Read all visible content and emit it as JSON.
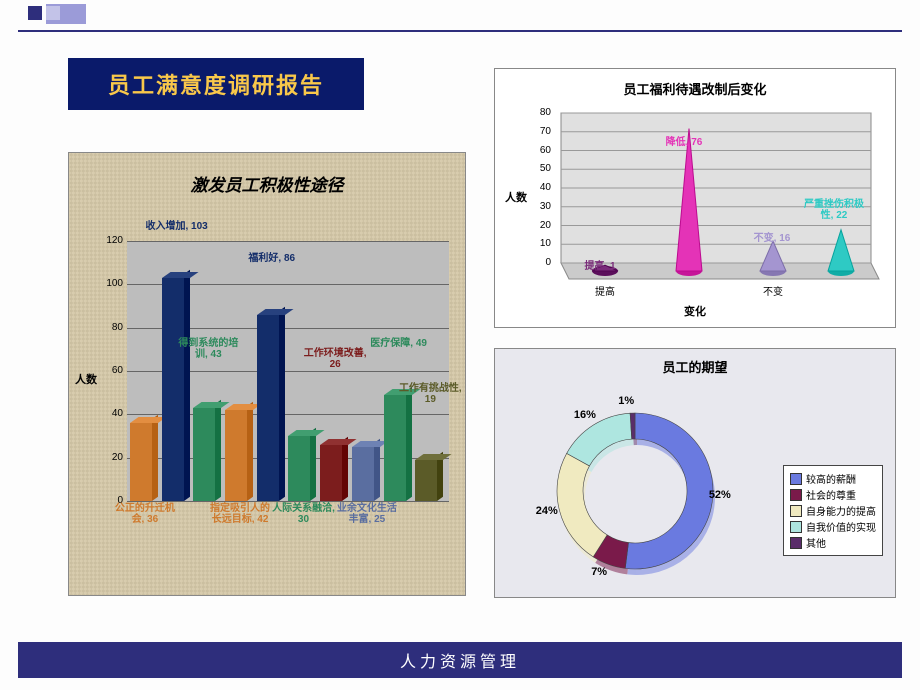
{
  "page": {
    "title_box": "员工满意度调研报告",
    "bottom_bar": "人力资源管理"
  },
  "bar_chart": {
    "title": "激发员工积极性途径",
    "ylabel": "人数",
    "type": "bar",
    "ylim": [
      0,
      120
    ],
    "ytick_step": 20,
    "grid_color": "#666666",
    "plot_bg": "#bdbdbd",
    "texture_bg_a": "#c8bb98",
    "texture_bg_b": "#d7c9a8",
    "bars": [
      {
        "label": "公正的升迁机会",
        "value": 36,
        "color": "#cf7a2d",
        "label_color": "#cf7a2d"
      },
      {
        "label": "收入增加",
        "value": 103,
        "color": "#132d6a",
        "label_color": "#132d6a"
      },
      {
        "label": "得到系统的培训",
        "value": 43,
        "color": "#2d8a5c",
        "label_color": "#2d8a5c"
      },
      {
        "label": "指定吸引人的长远目标",
        "value": 42,
        "color": "#cf7a2d",
        "label_color": "#cf7a2d"
      },
      {
        "label": "福利好",
        "value": 86,
        "color": "#132d6a",
        "label_color": "#132d6a"
      },
      {
        "label": "人际关系融洽",
        "value": 30,
        "color": "#2d8a5c",
        "label_color": "#2d8a5c"
      },
      {
        "label": "工作环境改善",
        "value": 26,
        "color": "#7c1d1d",
        "label_color": "#7c1d1d"
      },
      {
        "label": "业余文化生活丰富",
        "value": 25,
        "color": "#5a6ea0",
        "label_color": "#5a6ea0"
      },
      {
        "label": "医疗保障",
        "value": 49,
        "color": "#2d8a5c",
        "label_color": "#2d8a5c"
      },
      {
        "label": "工作有挑战性",
        "value": 19,
        "color": "#5b5b28",
        "label_color": "#5b5b28"
      }
    ]
  },
  "cone_chart": {
    "title": "员工福利待遇改制后变化",
    "ylabel": "人数",
    "xlabel": "变化",
    "type": "cone",
    "ylim": [
      0,
      80
    ],
    "ytick_step": 10,
    "plot_bg": "#e6e6e6",
    "floor_color": "#cbcbcb",
    "wall_color": "#e0e0e0",
    "points": [
      {
        "label": "提高",
        "value": 1,
        "data_label": "提高, 1",
        "color": "#7a2d7a",
        "text_color": "#7a2d7a"
      },
      {
        "label": "降低",
        "value": 76,
        "data_label": "降低, 76",
        "color": "#e433b7",
        "text_color": "#e433b7"
      },
      {
        "label": "不变",
        "value": 16,
        "data_label": "不变, 16",
        "color": "#a495d0",
        "text_color": "#a495d0"
      },
      {
        "label": "严重挫伤积极性",
        "value": 22,
        "data_label": "严重挫伤积极性, 22",
        "color": "#2ecac4",
        "text_color": "#2ecac4"
      }
    ]
  },
  "donut_chart": {
    "title": "员工的期望",
    "type": "donut",
    "bg": "#e8e8ee",
    "slices": [
      {
        "label": "较高的薪酬",
        "pct": 52,
        "color": "#6a7ae0"
      },
      {
        "label": "社会的尊重",
        "pct": 7,
        "color": "#7a1a4a"
      },
      {
        "label": "自身能力的提高",
        "pct": 24,
        "color": "#f0eac0"
      },
      {
        "label": "自我价值的实现",
        "pct": 16,
        "color": "#aee6e0"
      },
      {
        "label": "其他",
        "pct": 1,
        "color": "#5a2d6a"
      }
    ]
  }
}
